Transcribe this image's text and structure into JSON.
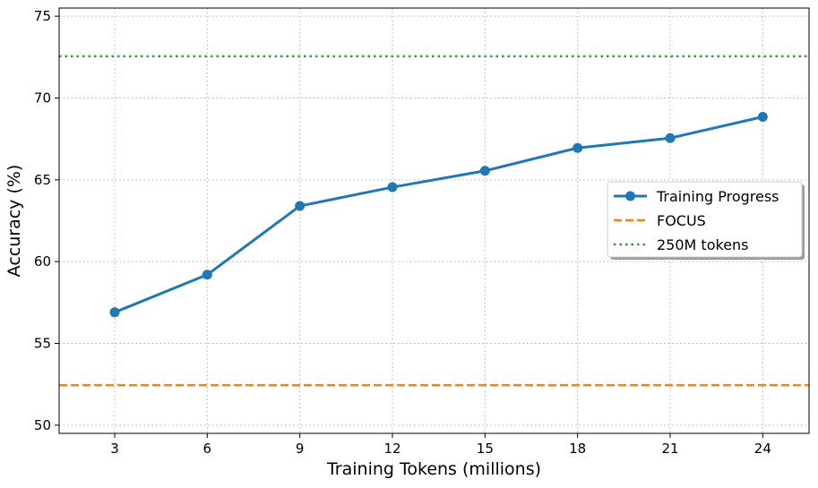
{
  "chart_data": {
    "type": "line",
    "title": "",
    "xlabel": "Training Tokens (millions)",
    "ylabel": "Accuracy (%)",
    "xlim": [
      1.2,
      25.5
    ],
    "ylim": [
      49.5,
      75.5
    ],
    "xticks": [
      3,
      6,
      9,
      12,
      15,
      18,
      21,
      24
    ],
    "yticks": [
      50,
      55,
      60,
      65,
      70,
      75
    ],
    "grid": true,
    "grid_style": "dotted",
    "legend_position": "center-right",
    "series": [
      {
        "name": "Training Progress",
        "kind": "line-marker",
        "color": "#1f77b4",
        "x": [
          3,
          6,
          9,
          12,
          15,
          18,
          21,
          24
        ],
        "y": [
          56.9,
          59.2,
          63.4,
          64.55,
          65.55,
          66.95,
          67.55,
          68.85
        ]
      },
      {
        "name": "FOCUS",
        "kind": "hline-dashed",
        "color": "#ff7f0e",
        "y": 52.45
      },
      {
        "name": "250M tokens",
        "kind": "hline-dotted",
        "color": "#2ca02c",
        "y": 72.55
      }
    ]
  }
}
